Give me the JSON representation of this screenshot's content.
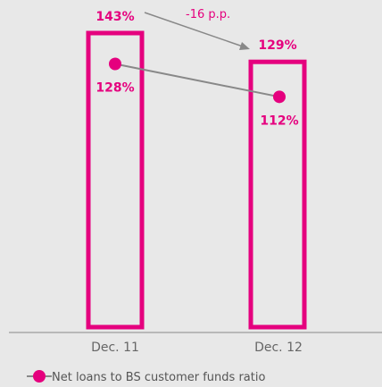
{
  "colors": {
    "accent": "#e5007e",
    "bg": "#e8e8e8",
    "axis": "#888888",
    "line": "#888888",
    "text": "#555555",
    "change_text": "#e5007e"
  },
  "chart_data": {
    "type": "bar+line",
    "categories": [
      "Dec. 11",
      "Dec. 12"
    ],
    "bars": {
      "values": [
        143,
        129
      ],
      "labels": [
        "143%",
        "129%"
      ],
      "style": "outlined"
    },
    "series": [
      {
        "name": "Net loans to BS customer funds ratio",
        "values": [
          128,
          112
        ],
        "labels": [
          "128%",
          "112%"
        ]
      }
    ],
    "change": {
      "label": "-16 p.p."
    },
    "ylim": [
      0,
      143
    ],
    "legend_position": "bottom-left"
  }
}
